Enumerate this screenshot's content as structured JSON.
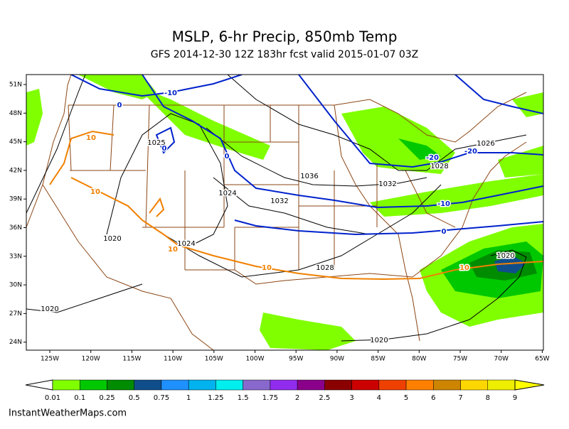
{
  "header": {
    "title": "MSLP, 6-hr Precip, 850mb Temp",
    "subtitle": "GFS 2014-12-30 12Z 183hr fcst valid 2015-01-07 03Z"
  },
  "map": {
    "lat_labels": [
      "51N",
      "48N",
      "45N",
      "42N",
      "39N",
      "36N",
      "33N",
      "30N",
      "27N",
      "24N"
    ],
    "lon_labels": [
      "125W",
      "120W",
      "115W",
      "110W",
      "105W",
      "100W",
      "95W",
      "90W",
      "85W",
      "80W",
      "75W",
      "70W",
      "65W"
    ],
    "isobar_labels": [
      "1025",
      "1024",
      "1036",
      "1032",
      "1032",
      "1028",
      "1026",
      "1020",
      "1024",
      "1028",
      "1020",
      "1020",
      "1020"
    ],
    "temp_blue_labels": [
      "-10",
      "0",
      "0",
      "0",
      "-20",
      "-20",
      "-10",
      "0"
    ],
    "temp_orange_labels": [
      "10",
      "10",
      "10",
      "10",
      "10"
    ]
  },
  "colorbar": {
    "labels": [
      "0.01",
      "0.1",
      "0.25",
      "0.5",
      "0.75",
      "1",
      "1.25",
      "1.5",
      "1.75",
      "2",
      "2.5",
      "3",
      "4",
      "5",
      "6",
      "7",
      "8",
      "9"
    ],
    "colors": [
      "#80ff00",
      "#00c800",
      "#008c00",
      "#104e8b",
      "#1e90ff",
      "#00b2ee",
      "#00eeee",
      "#8968cd",
      "#912cee",
      "#8b008b",
      "#8b0000",
      "#cd0000",
      "#ee4000",
      "#ff7f00",
      "#cd8500",
      "#ffd700",
      "#eeee00"
    ]
  },
  "footer": {
    "credit": "InstantWeatherMaps.com"
  }
}
